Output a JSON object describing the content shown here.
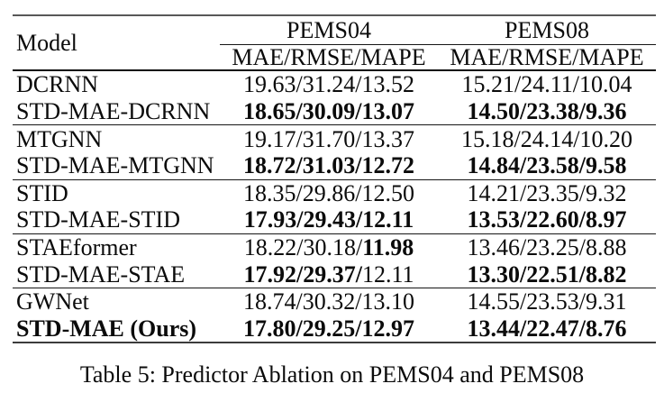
{
  "colors": {
    "background": "#ffffff",
    "ink": "#0b0b0b",
    "rule_dark": "#111111",
    "rule_gray": "#585858"
  },
  "table": {
    "caption": "Table 5: Predictor Ablation on PEMS04 and PEMS08",
    "header": {
      "model_label": "Model",
      "groups": [
        {
          "label": "PEMS04",
          "sub": "MAE/RMSE/MAPE"
        },
        {
          "label": "PEMS08",
          "sub": "MAE/RMSE/MAPE"
        }
      ]
    },
    "sections": [
      {
        "rows": [
          {
            "model": [
              {
                "t": "DCRNN",
                "b": false
              }
            ],
            "pems04": [
              {
                "t": "19.63/31.24/13.52",
                "b": false
              }
            ],
            "pems08": [
              {
                "t": "15.21/24.11/10.04",
                "b": false
              }
            ]
          },
          {
            "model": [
              {
                "t": "STD-MAE-DCRNN",
                "b": false
              }
            ],
            "pems04": [
              {
                "t": "18.65/30.09/13.07",
                "b": true
              }
            ],
            "pems08": [
              {
                "t": "14.50/23.38/9.36",
                "b": true
              }
            ]
          }
        ]
      },
      {
        "rows": [
          {
            "model": [
              {
                "t": "MTGNN",
                "b": false
              }
            ],
            "pems04": [
              {
                "t": "19.17/31.70/13.37",
                "b": false
              }
            ],
            "pems08": [
              {
                "t": "15.18/24.14/10.20",
                "b": false
              }
            ]
          },
          {
            "model": [
              {
                "t": "STD-MAE-MTGNN",
                "b": false
              }
            ],
            "pems04": [
              {
                "t": "18.72/31.03/12.72",
                "b": true
              }
            ],
            "pems08": [
              {
                "t": "14.84/23.58/9.58",
                "b": true
              }
            ]
          }
        ]
      },
      {
        "rows": [
          {
            "model": [
              {
                "t": "STID",
                "b": false
              }
            ],
            "pems04": [
              {
                "t": "18.35/29.86/12.50",
                "b": false
              }
            ],
            "pems08": [
              {
                "t": "14.21/23.35/9.32",
                "b": false
              }
            ]
          },
          {
            "model": [
              {
                "t": "STD-MAE-STID",
                "b": false
              }
            ],
            "pems04": [
              {
                "t": "17.93/29.43/12.11",
                "b": true
              }
            ],
            "pems08": [
              {
                "t": "13.53/22.60/8.97",
                "b": true
              }
            ]
          }
        ]
      },
      {
        "rows": [
          {
            "model": [
              {
                "t": "STAEformer",
                "b": false
              }
            ],
            "pems04": [
              {
                "t": "18.22/30.18/",
                "b": false
              },
              {
                "t": "11.98",
                "b": true
              }
            ],
            "pems08": [
              {
                "t": "13.46/23.25/8.88",
                "b": false
              }
            ]
          },
          {
            "model": [
              {
                "t": "STD-MAE-STAE",
                "b": false
              }
            ],
            "pems04": [
              {
                "t": "17.92/29.37/",
                "b": true
              },
              {
                "t": "12.11",
                "b": false
              }
            ],
            "pems08": [
              {
                "t": "13.30/22.51/8.82",
                "b": true
              }
            ]
          }
        ]
      },
      {
        "rows": [
          {
            "model": [
              {
                "t": "GWNet",
                "b": false
              }
            ],
            "pems04": [
              {
                "t": "18.74/30.32/13.10",
                "b": false
              }
            ],
            "pems08": [
              {
                "t": "14.55/23.53/9.31",
                "b": false
              }
            ]
          },
          {
            "model": [
              {
                "t": "STD-MAE (Ours)",
                "b": true
              }
            ],
            "pems04": [
              {
                "t": "17.80/29.25/12.97",
                "b": true
              }
            ],
            "pems08": [
              {
                "t": "13.44/22.47/8.76",
                "b": true
              }
            ]
          }
        ]
      }
    ]
  }
}
